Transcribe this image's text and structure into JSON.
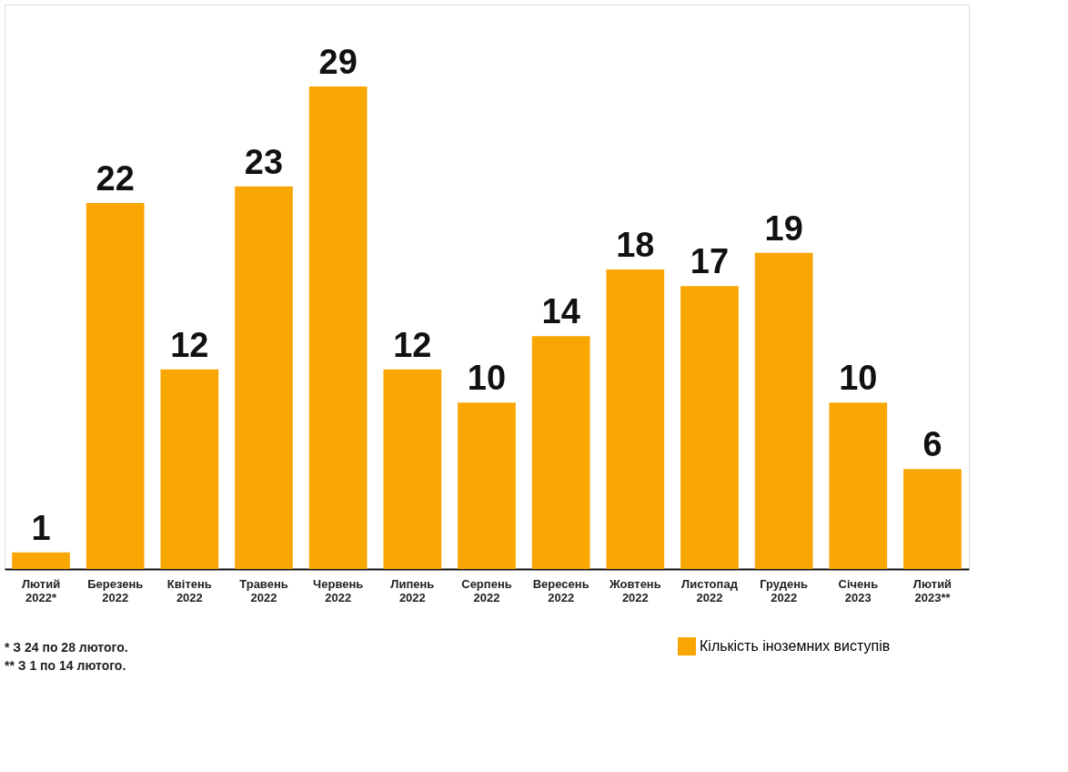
{
  "chart_data": {
    "type": "bar",
    "categories": [
      "Лютий 2022*",
      "Березень 2022",
      "Квітень 2022",
      "Травень 2022",
      "Червень 2022",
      "Липень 2022",
      "Серпень 2022",
      "Вересень 2022",
      "Жовтень 2022",
      "Листопад 2022",
      "Грудень 2022",
      "Січень 2023",
      "Лютий 2023**"
    ],
    "series": [
      {
        "name": "Кількість іноземних виступів",
        "color": "#f9a602",
        "values": [
          1,
          22,
          12,
          23,
          29,
          12,
          10,
          14,
          18,
          17,
          19,
          10,
          6
        ]
      }
    ],
    "data_labels": true,
    "grid": false,
    "legend": "bottom right",
    "tick_labels": "x",
    "annotations": [
      "* З 24 по 28 лютого.",
      "** З 1 по 14 лютого."
    ]
  }
}
